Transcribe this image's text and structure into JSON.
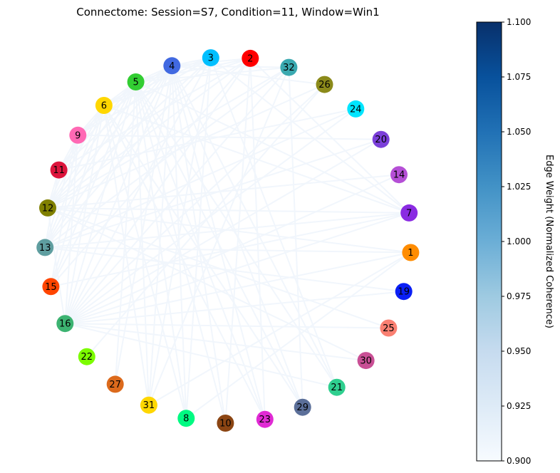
{
  "chart_data": {
    "type": "network",
    "title": "Connectome: Session=S7, Condition=11, Window=Win1",
    "nodes": [
      {
        "id": "2",
        "color": "#ff0000"
      },
      {
        "id": "32",
        "color": "#3aa9b0"
      },
      {
        "id": "26",
        "color": "#8b8a1a"
      },
      {
        "id": "24",
        "color": "#00e5ff"
      },
      {
        "id": "20",
        "color": "#7b3fd9"
      },
      {
        "id": "14",
        "color": "#b54fd6"
      },
      {
        "id": "7",
        "color": "#8a2be2"
      },
      {
        "id": "1",
        "color": "#ff8c00"
      },
      {
        "id": "19",
        "color": "#0a1ff5"
      },
      {
        "id": "25",
        "color": "#fa8072"
      },
      {
        "id": "30",
        "color": "#c94f95"
      },
      {
        "id": "21",
        "color": "#2fcf8f"
      },
      {
        "id": "29",
        "color": "#5b6f99"
      },
      {
        "id": "23",
        "color": "#e02ad4"
      },
      {
        "id": "10",
        "color": "#8b4513"
      },
      {
        "id": "8",
        "color": "#00fa82"
      },
      {
        "id": "31",
        "color": "#ffd700"
      },
      {
        "id": "27",
        "color": "#dc6a1c"
      },
      {
        "id": "22",
        "color": "#7cfc00"
      },
      {
        "id": "16",
        "color": "#3cb371"
      },
      {
        "id": "15",
        "color": "#ff4500"
      },
      {
        "id": "13",
        "color": "#5f9ea0"
      },
      {
        "id": "12",
        "color": "#808000"
      },
      {
        "id": "11",
        "color": "#dc143c"
      },
      {
        "id": "9",
        "color": "#ff69b4"
      },
      {
        "id": "6",
        "color": "#ffd700"
      },
      {
        "id": "5",
        "color": "#32cd32"
      },
      {
        "id": "4",
        "color": "#4169e1"
      },
      {
        "id": "3",
        "color": "#00bfff"
      }
    ],
    "edges": [
      [
        "3",
        "16"
      ],
      [
        "3",
        "13"
      ],
      [
        "3",
        "8"
      ],
      [
        "3",
        "31"
      ],
      [
        "3",
        "21"
      ],
      [
        "3",
        "7"
      ],
      [
        "3",
        "12"
      ],
      [
        "3",
        "9"
      ],
      [
        "2",
        "15"
      ],
      [
        "2",
        "12"
      ],
      [
        "2",
        "10"
      ],
      [
        "2",
        "23"
      ],
      [
        "2",
        "7"
      ],
      [
        "2",
        "16"
      ],
      [
        "2",
        "11"
      ],
      [
        "32",
        "16"
      ],
      [
        "32",
        "13"
      ],
      [
        "32",
        "29"
      ],
      [
        "32",
        "31"
      ],
      [
        "32",
        "12"
      ],
      [
        "26",
        "16"
      ],
      [
        "26",
        "12"
      ],
      [
        "26",
        "22"
      ],
      [
        "24",
        "16"
      ],
      [
        "24",
        "13"
      ],
      [
        "24",
        "11"
      ],
      [
        "20",
        "9"
      ],
      [
        "20",
        "13"
      ],
      [
        "20",
        "16"
      ],
      [
        "14",
        "16"
      ],
      [
        "14",
        "12"
      ],
      [
        "7",
        "13"
      ],
      [
        "7",
        "16"
      ],
      [
        "7",
        "12"
      ],
      [
        "7",
        "15"
      ],
      [
        "7",
        "6"
      ],
      [
        "7",
        "5"
      ],
      [
        "1",
        "13"
      ],
      [
        "1",
        "16"
      ],
      [
        "1",
        "31"
      ],
      [
        "1",
        "8"
      ],
      [
        "1",
        "12"
      ],
      [
        "19",
        "16"
      ],
      [
        "19",
        "13"
      ],
      [
        "25",
        "16"
      ],
      [
        "25",
        "12"
      ],
      [
        "30",
        "16"
      ],
      [
        "30",
        "12"
      ],
      [
        "21",
        "16"
      ],
      [
        "21",
        "5"
      ],
      [
        "21",
        "4"
      ],
      [
        "29",
        "6"
      ],
      [
        "29",
        "5"
      ],
      [
        "29",
        "4"
      ],
      [
        "23",
        "5"
      ],
      [
        "23",
        "4"
      ],
      [
        "23",
        "6"
      ],
      [
        "10",
        "4"
      ],
      [
        "10",
        "5"
      ],
      [
        "8",
        "4"
      ],
      [
        "8",
        "5"
      ],
      [
        "8",
        "6"
      ],
      [
        "31",
        "4"
      ],
      [
        "31",
        "5"
      ],
      [
        "31",
        "6"
      ],
      [
        "27",
        "5"
      ],
      [
        "27",
        "4"
      ],
      [
        "16",
        "5"
      ],
      [
        "16",
        "4"
      ],
      [
        "16",
        "6"
      ],
      [
        "16",
        "9"
      ],
      [
        "16",
        "12"
      ],
      [
        "15",
        "5"
      ],
      [
        "15",
        "4"
      ],
      [
        "15",
        "6"
      ],
      [
        "15",
        "9"
      ],
      [
        "13",
        "5"
      ],
      [
        "13",
        "4"
      ],
      [
        "13",
        "6"
      ],
      [
        "13",
        "9"
      ],
      [
        "13",
        "11"
      ],
      [
        "12",
        "5"
      ],
      [
        "12",
        "4"
      ],
      [
        "12",
        "6"
      ],
      [
        "12",
        "9"
      ],
      [
        "12",
        "11"
      ],
      [
        "11",
        "5"
      ],
      [
        "11",
        "4"
      ],
      [
        "11",
        "6"
      ],
      [
        "11",
        "9"
      ],
      [
        "9",
        "5"
      ],
      [
        "9",
        "4"
      ],
      [
        "9",
        "6"
      ],
      [
        "9",
        "3"
      ],
      [
        "6",
        "5"
      ],
      [
        "6",
        "4"
      ],
      [
        "6",
        "3"
      ],
      [
        "6",
        "2"
      ],
      [
        "5",
        "4"
      ],
      [
        "5",
        "3"
      ],
      [
        "5",
        "2"
      ],
      [
        "5",
        "32"
      ],
      [
        "4",
        "3"
      ],
      [
        "4",
        "2"
      ],
      [
        "4",
        "32"
      ],
      [
        "4",
        "26"
      ]
    ],
    "edge_color": "#f1f6fc",
    "colorbar": {
      "label": "Edge Weight (Normalized Coherence)",
      "range": [
        0.9,
        1.1
      ],
      "ticks": [
        "1.100",
        "1.075",
        "1.050",
        "1.025",
        "1.000",
        "0.975",
        "0.950",
        "0.925",
        "0.900"
      ],
      "tick_values": [
        1.1,
        1.075,
        1.05,
        1.025,
        1.0,
        0.975,
        0.95,
        0.925,
        0.9
      ],
      "colormap": "Blues",
      "color_low": "#f7fbff",
      "color_high": "#08306b"
    }
  }
}
